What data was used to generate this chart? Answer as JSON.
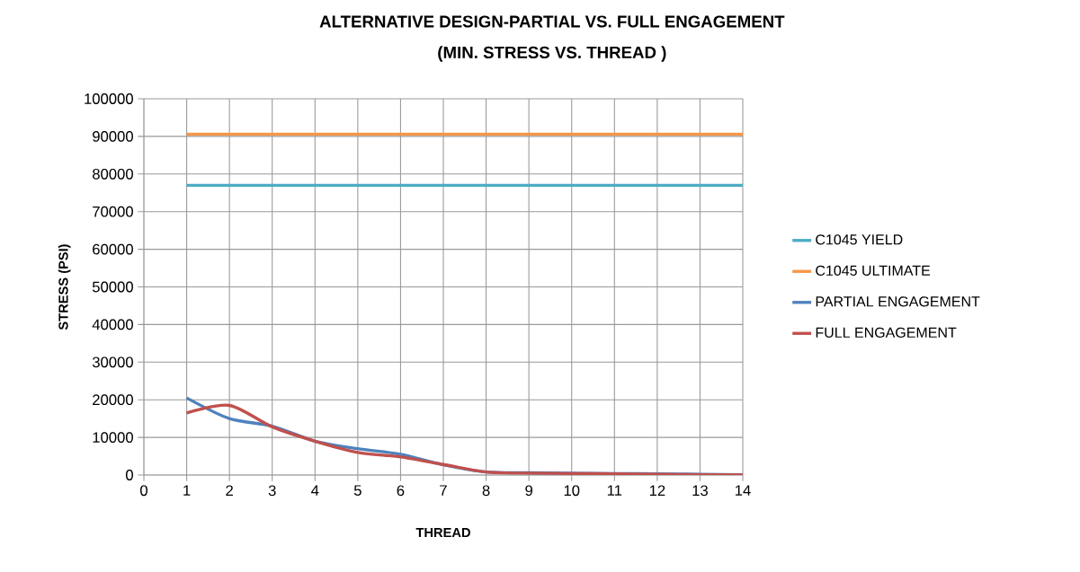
{
  "chart_data": {
    "type": "line",
    "title": "ALTERNATIVE DESIGN-PARTIAL VS. FULL ENGAGEMENT",
    "subtitle": "(MIN. STRESS VS. THREAD )",
    "xlabel": "THREAD",
    "ylabel": "STRESS (PSI)",
    "x": [
      1,
      2,
      3,
      4,
      5,
      6,
      7,
      8,
      9,
      10,
      11,
      12,
      13,
      14
    ],
    "series": [
      {
        "name": "C1045 YIELD",
        "color": "#4bacc6",
        "values": [
          77000,
          77000,
          77000,
          77000,
          77000,
          77000,
          77000,
          77000,
          77000,
          77000,
          77000,
          77000,
          77000,
          77000
        ]
      },
      {
        "name": "C1045 ULTIMATE",
        "color": "#f79646",
        "values": [
          90600,
          90600,
          90600,
          90600,
          90600,
          90600,
          90600,
          90600,
          90600,
          90600,
          90600,
          90600,
          90600,
          90600
        ]
      },
      {
        "name": "PARTIAL ENGAGEMENT",
        "color": "#4f81bd",
        "values": [
          20500,
          15000,
          13000,
          9000,
          7000,
          5500,
          2700,
          800,
          600,
          500,
          400,
          300,
          200,
          100
        ]
      },
      {
        "name": "FULL ENGAGEMENT",
        "color": "#c0504d",
        "values": [
          16500,
          18500,
          12800,
          9000,
          6000,
          4800,
          2800,
          800,
          500,
          400,
          300,
          200,
          100,
          0
        ]
      }
    ],
    "xlim": [
      0,
      14
    ],
    "xticks": [
      0,
      1,
      2,
      3,
      4,
      5,
      6,
      7,
      8,
      9,
      10,
      11,
      12,
      13,
      14
    ],
    "ylim": [
      0,
      100000
    ],
    "yticks": [
      0,
      10000,
      20000,
      30000,
      40000,
      50000,
      60000,
      70000,
      80000,
      90000,
      100000
    ],
    "grid": true,
    "legend": "right",
    "marker": "none",
    "line_style": "solid"
  }
}
